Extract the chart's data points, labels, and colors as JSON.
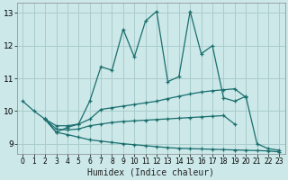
{
  "xlabel": "Humidex (Indice chaleur)",
  "background_color": "#cce8e8",
  "grid_color": "#aacccc",
  "line_color": "#1a6e6e",
  "xlim": [
    -0.5,
    23.5
  ],
  "ylim": [
    8.7,
    13.3
  ],
  "xticks": [
    0,
    1,
    2,
    3,
    4,
    5,
    6,
    7,
    8,
    9,
    10,
    11,
    12,
    13,
    14,
    15,
    16,
    17,
    18,
    19,
    20,
    21,
    22,
    23
  ],
  "yticks": [
    9,
    10,
    11,
    12,
    13
  ],
  "lines": [
    {
      "x": [
        0,
        1,
        2,
        3,
        4,
        5,
        6,
        7,
        8,
        9,
        10,
        11,
        12,
        13,
        14,
        15,
        16,
        17,
        18,
        19,
        20,
        21,
        22,
        23
      ],
      "y": [
        10.3,
        10.0,
        9.75,
        9.35,
        9.5,
        9.6,
        10.3,
        11.35,
        11.25,
        12.5,
        11.65,
        12.75,
        13.05,
        10.9,
        11.05,
        13.05,
        11.75,
        12.0,
        10.4,
        10.3,
        10.45,
        9.0,
        8.85,
        8.8
      ]
    },
    {
      "x": [
        2,
        3,
        4,
        5,
        6,
        7,
        8,
        9,
        10,
        11,
        12,
        13,
        14,
        15,
        16,
        17,
        18,
        19,
        20
      ],
      "y": [
        9.75,
        9.55,
        9.55,
        9.6,
        9.75,
        10.05,
        10.1,
        10.15,
        10.2,
        10.25,
        10.3,
        10.38,
        10.45,
        10.52,
        10.58,
        10.62,
        10.65,
        10.68,
        10.42
      ]
    },
    {
      "x": [
        2,
        3,
        4,
        5,
        6,
        7,
        8,
        9,
        10,
        11,
        12,
        13,
        14,
        15,
        16,
        17,
        18,
        19
      ],
      "y": [
        9.75,
        9.45,
        9.42,
        9.45,
        9.55,
        9.6,
        9.65,
        9.68,
        9.7,
        9.72,
        9.74,
        9.76,
        9.78,
        9.8,
        9.82,
        9.84,
        9.86,
        9.6
      ]
    },
    {
      "x": [
        2,
        3,
        4,
        5,
        6,
        7,
        8,
        9,
        10,
        11,
        12,
        13,
        14,
        15,
        16,
        17,
        18,
        19,
        20,
        21,
        22,
        23
      ],
      "y": [
        9.75,
        9.35,
        9.28,
        9.2,
        9.12,
        9.08,
        9.04,
        9.0,
        8.97,
        8.94,
        8.91,
        8.88,
        8.86,
        8.85,
        8.84,
        8.83,
        8.82,
        8.81,
        8.8,
        8.79,
        8.78,
        8.75
      ]
    }
  ]
}
